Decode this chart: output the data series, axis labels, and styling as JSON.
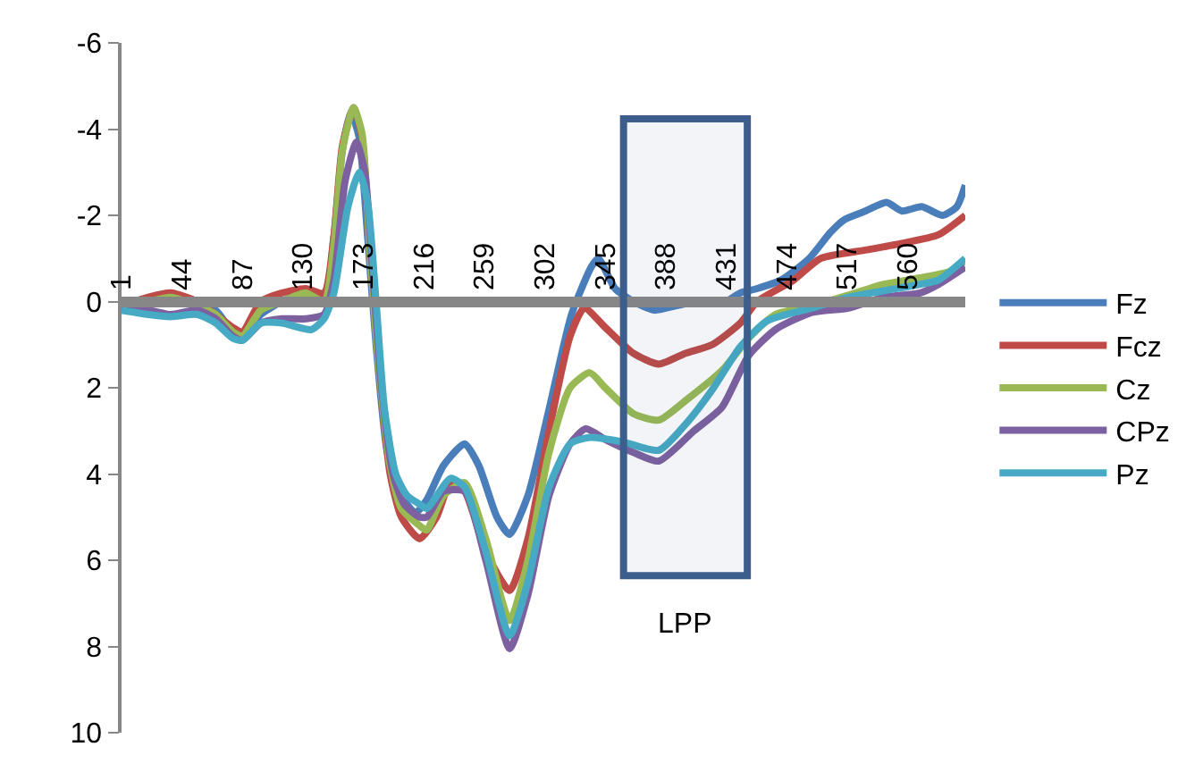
{
  "chart_data": {
    "type": "line",
    "xlim": [
      1,
      601
    ],
    "xticks": [
      1,
      44,
      87,
      130,
      173,
      216,
      259,
      302,
      345,
      388,
      431,
      474,
      517,
      560
    ],
    "ylim": [
      10,
      -6
    ],
    "yticks": [
      -6,
      -4,
      -2,
      0,
      2,
      4,
      6,
      8,
      10
    ],
    "legend": "right",
    "marker": "none",
    "line_style": "solid",
    "bands": [
      {
        "axis": "x",
        "from": 358,
        "to": 446,
        "label": "LPP",
        "color": "#3b5e8c"
      }
    ],
    "series": [
      {
        "name": "Fz",
        "color": "#4a7ebb",
        "x": [
          1,
          20,
          36,
          55,
          68,
          80,
          87,
          100,
          115,
          132,
          145,
          152,
          158,
          164,
          170,
          176,
          182,
          190,
          200,
          210,
          218,
          230,
          245,
          255,
          268,
          277,
          290,
          305,
          321,
          335,
          340,
          352,
          365,
          380,
          395,
          410,
          428,
          441,
          453,
          470,
          490,
          505,
          515,
          530,
          545,
          556,
          570,
          585,
          595,
          601
        ],
        "values": [
          0.15,
          0.0,
          -0.1,
          0.05,
          0.2,
          0.7,
          0.8,
          0.3,
          0.0,
          -0.2,
          0.0,
          -1.5,
          -3.5,
          -4.4,
          -3.8,
          -1.5,
          1.0,
          3.5,
          4.5,
          4.9,
          4.6,
          3.8,
          3.3,
          3.8,
          5.0,
          5.4,
          4.5,
          2.5,
          0.3,
          -0.8,
          -1.0,
          -0.3,
          0.0,
          0.2,
          0.1,
          0.0,
          0.05,
          -0.2,
          -0.3,
          -0.5,
          -1.0,
          -1.6,
          -1.9,
          -2.1,
          -2.3,
          -2.1,
          -2.2,
          -2.0,
          -2.2,
          -2.7
        ]
      },
      {
        "name": "Fcz",
        "color": "#be4b48",
        "x": [
          1,
          20,
          36,
          55,
          68,
          80,
          87,
          100,
          115,
          132,
          145,
          152,
          158,
          166,
          172,
          178,
          184,
          192,
          200,
          213,
          225,
          235,
          245,
          260,
          277,
          290,
          305,
          320,
          330,
          345,
          365,
          383,
          402,
          421,
          441,
          453,
          479,
          498,
          531,
          556,
          582,
          601
        ],
        "values": [
          0.1,
          -0.1,
          -0.2,
          0.0,
          0.3,
          0.6,
          0.7,
          0.0,
          -0.2,
          -0.3,
          -0.2,
          -1.5,
          -3.6,
          -4.5,
          -3.8,
          -1.0,
          1.5,
          4.0,
          5.0,
          5.5,
          5.0,
          4.2,
          4.4,
          5.8,
          6.7,
          5.5,
          3.0,
          0.8,
          0.15,
          0.6,
          1.2,
          1.45,
          1.2,
          1.0,
          0.5,
          0.0,
          -0.5,
          -1.0,
          -1.2,
          -1.35,
          -1.55,
          -2.0
        ]
      },
      {
        "name": "Cz",
        "color": "#98b954",
        "x": [
          1,
          20,
          36,
          55,
          68,
          80,
          87,
          100,
          115,
          132,
          145,
          152,
          158,
          166,
          172,
          178,
          184,
          192,
          200,
          213,
          218,
          230,
          245,
          260,
          277,
          290,
          305,
          320,
          334,
          345,
          365,
          383,
          402,
          428,
          447,
          466,
          492,
          518,
          543,
          569,
          595,
          601
        ],
        "values": [
          0.15,
          0.0,
          -0.1,
          0.1,
          0.3,
          0.7,
          0.8,
          0.2,
          0.0,
          -0.2,
          0.0,
          -1.3,
          -3.5,
          -4.5,
          -3.9,
          -1.0,
          1.5,
          3.8,
          4.8,
          5.2,
          5.3,
          4.5,
          4.2,
          5.5,
          7.4,
          6.0,
          3.5,
          2.0,
          1.65,
          2.0,
          2.6,
          2.75,
          2.3,
          1.6,
          0.85,
          0.3,
          0.1,
          -0.15,
          -0.4,
          -0.55,
          -0.75,
          -1.0
        ]
      },
      {
        "name": "CPz",
        "color": "#7d60a0",
        "x": [
          1,
          20,
          36,
          55,
          68,
          80,
          87,
          100,
          115,
          132,
          145,
          152,
          160,
          168,
          174,
          180,
          186,
          194,
          202,
          213,
          218,
          230,
          245,
          260,
          277,
          290,
          305,
          320,
          331,
          345,
          365,
          383,
          408,
          428,
          447,
          466,
          492,
          518,
          543,
          569,
          582,
          601
        ],
        "values": [
          0.2,
          0.2,
          0.3,
          0.2,
          0.4,
          0.8,
          0.9,
          0.5,
          0.4,
          0.4,
          0.3,
          -0.5,
          -2.8,
          -3.7,
          -3.0,
          -0.5,
          2.0,
          4.0,
          4.7,
          5.0,
          5.0,
          4.4,
          4.4,
          6.0,
          8.05,
          6.8,
          4.5,
          3.3,
          2.95,
          3.2,
          3.5,
          3.7,
          3.0,
          2.45,
          1.25,
          0.65,
          0.25,
          0.15,
          -0.1,
          -0.2,
          -0.4,
          -0.8
        ]
      },
      {
        "name": "Pz",
        "color": "#46aac5",
        "x": [
          1,
          20,
          36,
          55,
          68,
          80,
          87,
          100,
          115,
          136,
          145,
          152,
          162,
          170,
          176,
          182,
          188,
          196,
          204,
          213,
          218,
          235,
          245,
          260,
          277,
          290,
          305,
          320,
          334,
          357,
          383,
          402,
          421,
          441,
          460,
          492,
          518,
          543,
          569,
          582,
          601
        ],
        "values": [
          0.2,
          0.3,
          0.35,
          0.3,
          0.5,
          0.85,
          0.9,
          0.5,
          0.5,
          0.65,
          0.4,
          -0.2,
          -2.2,
          -3.0,
          -2.3,
          0.0,
          2.5,
          4.0,
          4.5,
          4.7,
          4.8,
          4.1,
          4.3,
          5.8,
          7.75,
          6.5,
          4.3,
          3.3,
          3.15,
          3.25,
          3.45,
          2.85,
          2.05,
          1.05,
          0.45,
          0.15,
          -0.1,
          -0.25,
          -0.4,
          -0.5,
          -1.0
        ]
      }
    ]
  }
}
